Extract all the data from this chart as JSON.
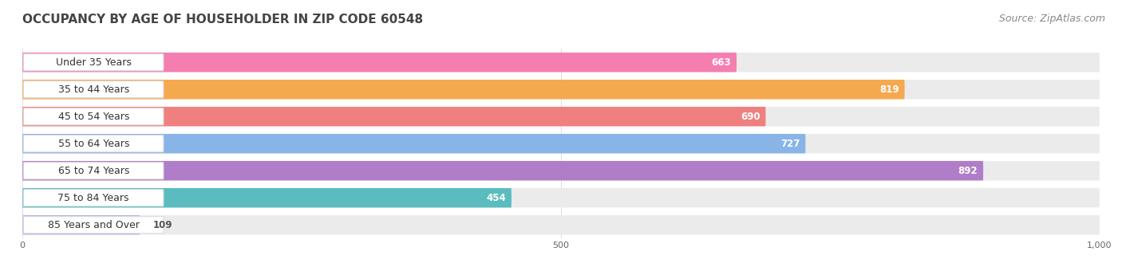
{
  "title": "OCCUPANCY BY AGE OF HOUSEHOLDER IN ZIP CODE 60548",
  "source": "Source: ZipAtlas.com",
  "categories": [
    "Under 35 Years",
    "35 to 44 Years",
    "45 to 54 Years",
    "55 to 64 Years",
    "65 to 74 Years",
    "75 to 84 Years",
    "85 Years and Over"
  ],
  "values": [
    663,
    819,
    690,
    727,
    892,
    454,
    109
  ],
  "bar_colors": [
    "#F47EB0",
    "#F5A94E",
    "#F08080",
    "#89B4E8",
    "#B07DC8",
    "#5BBCBF",
    "#B0B8E8"
  ],
  "bar_bg_color": "#EBEBEB",
  "xlim": [
    0,
    1000
  ],
  "xticks": [
    0,
    500,
    1000
  ],
  "bar_height": 0.72,
  "background_color": "#FFFFFF",
  "title_fontsize": 11,
  "label_fontsize": 9,
  "value_fontsize": 8.5,
  "source_fontsize": 9
}
